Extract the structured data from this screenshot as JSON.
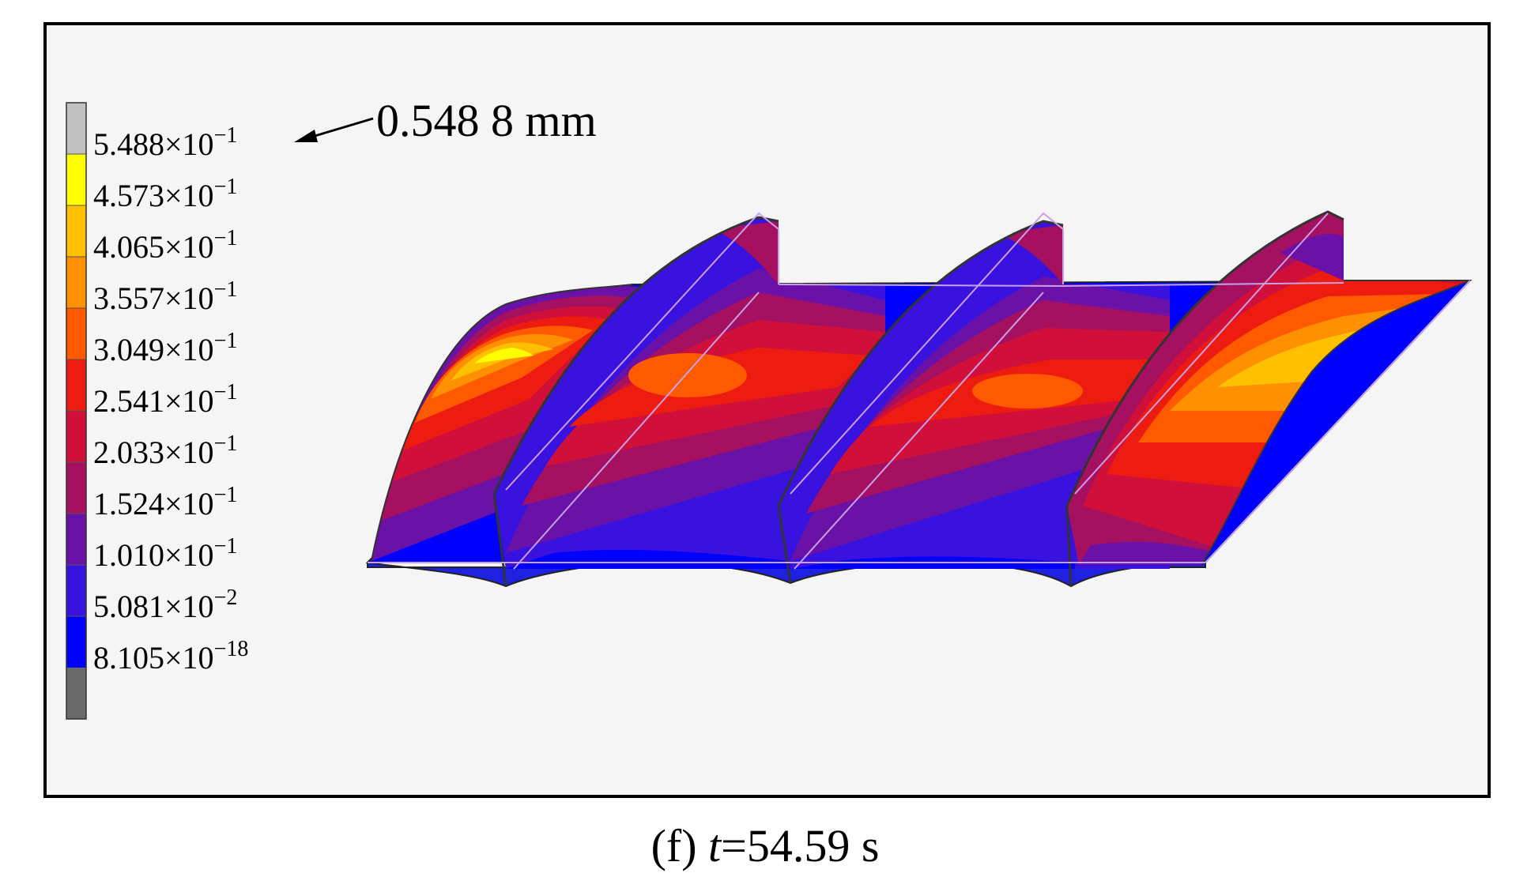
{
  "legend": {
    "entries": [
      {
        "mantissa": "5.488",
        "times": "×10",
        "exp": "−1",
        "color": "#c0c0c0"
      },
      {
        "mantissa": "4.573",
        "times": "×10",
        "exp": "−1",
        "color": "#ffff00"
      },
      {
        "mantissa": "4.065",
        "times": "×10",
        "exp": "−1",
        "color": "#ffc000"
      },
      {
        "mantissa": "3.557",
        "times": "×10",
        "exp": "−1",
        "color": "#ff9000"
      },
      {
        "mantissa": "3.049",
        "times": "×10",
        "exp": "−1",
        "color": "#ff5a00"
      },
      {
        "mantissa": "2.541",
        "times": "×10",
        "exp": "−1",
        "color": "#ee1c10"
      },
      {
        "mantissa": "2.033",
        "times": "×10",
        "exp": "−1",
        "color": "#d0103a"
      },
      {
        "mantissa": "1.524",
        "times": "×10",
        "exp": "−1",
        "color": "#a51060"
      },
      {
        "mantissa": "1.010",
        "times": "×10",
        "exp": "−1",
        "color": "#6a12a8"
      },
      {
        "mantissa": "5.081",
        "times": "×10",
        "exp": "−2",
        "color": "#3a12e0"
      },
      {
        "mantissa": "8.105",
        "times": "×10",
        "exp": "−18",
        "color": "#0000ff"
      }
    ],
    "bottom_color": "#6a6a6a"
  },
  "annotation": {
    "text": "0.548 8 mm"
  },
  "caption": {
    "prefix": "(f) ",
    "variable": "t",
    "suffix": "=54.59 s"
  },
  "colors": {
    "panel_bg": "#f5f5f5",
    "frame": "#000000",
    "wire": "#c8a0e8"
  }
}
